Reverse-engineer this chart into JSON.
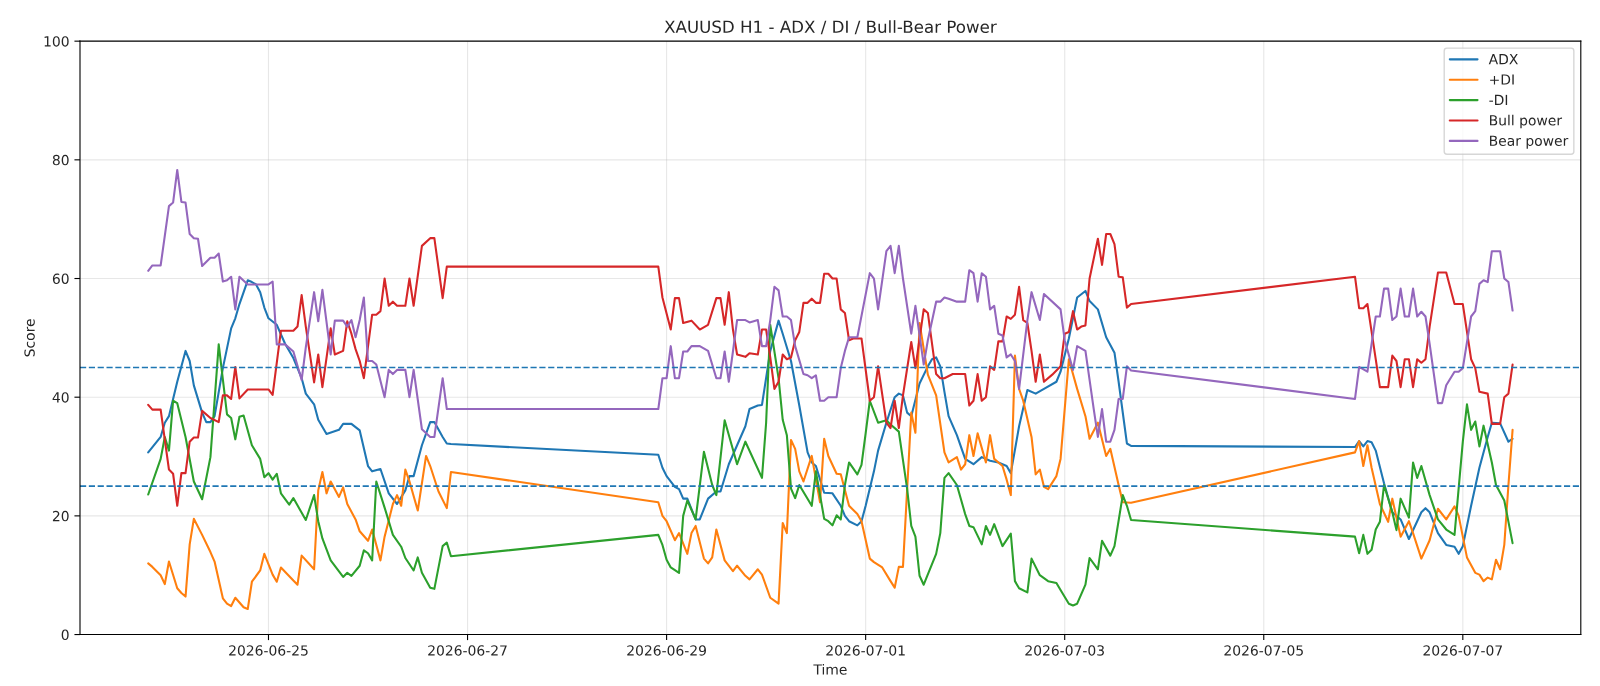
{
  "chart_data": {
    "type": "line",
    "title": "XAUUSD H1 - ADX / DI / Bull-Bear Power",
    "xlabel": "Time",
    "ylabel": "Score",
    "xlim": [
      "2026-06-23T02:33",
      "2026-07-08T04:27"
    ],
    "ylim": [
      0,
      100
    ],
    "yticks": [
      0,
      20,
      40,
      60,
      80,
      100
    ],
    "xticks": [
      {
        "value": "2026-06-25",
        "label": "2026-06-25"
      },
      {
        "value": "2026-06-27",
        "label": "2026-06-27"
      },
      {
        "value": "2026-06-29",
        "label": "2026-06-29"
      },
      {
        "value": "2026-07-01",
        "label": "2026-07-01"
      },
      {
        "value": "2026-07-03",
        "label": "2026-07-03"
      },
      {
        "value": "2026-07-05",
        "label": "2026-07-05"
      },
      {
        "value": "2026-07-07",
        "label": "2026-07-07"
      }
    ],
    "grid": true,
    "legend": "top right",
    "line_style": "solid",
    "ref_lines": [
      {
        "axis": "y",
        "value": 45,
        "color": "#1f77b4",
        "line_style": "dashed"
      },
      {
        "axis": "y",
        "value": 25,
        "color": "#1f77b4",
        "line_style": "dashed"
      }
    ],
    "series": [
      {
        "name": "ADX",
        "color": "#1f77b4",
        "x": [
          "2026-06-23T19:00",
          "2026-06-23T22:00",
          "2026-06-23T23:00",
          "2026-06-24T00:00",
          "2026-06-24T02:00",
          "2026-06-24T04:00",
          "2026-06-24T05:00",
          "2026-06-24T06:00",
          "2026-06-24T08:00",
          "2026-06-24T09:00",
          "2026-06-24T10:00",
          "2026-06-24T11:00",
          "2026-06-24T13:00",
          "2026-06-24T15:00",
          "2026-06-24T16:00",
          "2026-06-24T17:00",
          "2026-06-24T19:00",
          "2026-06-24T20:00",
          "2026-06-24T21:00",
          "2026-06-24T22:00",
          "2026-06-24T23:00",
          "2026-06-25T00:00",
          "2026-06-25T02:00",
          "2026-06-25T04:00",
          "2026-06-25T06:00",
          "2026-06-25T08:00",
          "2026-06-25T09:00",
          "2026-06-25T11:00",
          "2026-06-25T12:00",
          "2026-06-25T14:00",
          "2026-06-25T17:00",
          "2026-06-25T18:00",
          "2026-06-25T20:00",
          "2026-06-25T22:00",
          "2026-06-26T00:00",
          "2026-06-26T01:00",
          "2026-06-26T03:00",
          "2026-06-26T05:00",
          "2026-06-26T07:00",
          "2026-06-26T09:00",
          "2026-06-26T10:00",
          "2026-06-26T11:00",
          "2026-06-26T13:00",
          "2026-06-26T15:00",
          "2026-06-26T16:00",
          "2026-06-26T18:00",
          "2026-06-26T19:00",
          "2026-06-26T20:00",
          "2026-06-28T22:00",
          "2026-06-28T23:00",
          "2026-06-29T00:00",
          "2026-06-29T02:00",
          "2026-06-29T03:00",
          "2026-06-29T04:00",
          "2026-06-29T05:00",
          "2026-06-29T07:00",
          "2026-06-29T08:00",
          "2026-06-29T10:00",
          "2026-06-29T12:00",
          "2026-06-29T13:00",
          "2026-06-29T15:00",
          "2026-06-29T17:00",
          "2026-06-29T19:00",
          "2026-06-29T20:00",
          "2026-06-29T22:00",
          "2026-06-29T23:00",
          "2026-06-30T01:00",
          "2026-06-30T03:00",
          "2026-06-30T04:00",
          "2026-06-30T06:00",
          "2026-06-30T08:00",
          "2026-06-30T10:00",
          "2026-06-30T11:00",
          "2026-06-30T12:00",
          "2026-06-30T14:00",
          "2026-06-30T16:00",
          "2026-06-30T18:00",
          "2026-06-30T19:00",
          "2026-06-30T20:00",
          "2026-06-30T22:00",
          "2026-06-30T23:00",
          "2026-07-01T00:00",
          "2026-07-01T02:00",
          "2026-07-01T03:00",
          "2026-07-01T05:00",
          "2026-07-01T07:00",
          "2026-07-01T08:00",
          "2026-07-01T09:00",
          "2026-07-01T10:00",
          "2026-07-01T11:00",
          "2026-07-01T13:00",
          "2026-07-01T15:00",
          "2026-07-01T16:00",
          "2026-07-01T17:00",
          "2026-07-01T18:00",
          "2026-07-01T19:00",
          "2026-07-01T20:00",
          "2026-07-01T22:00",
          "2026-07-02T00:00",
          "2026-07-02T02:00",
          "2026-07-02T04:00",
          "2026-07-02T06:00",
          "2026-07-02T08:00",
          "2026-07-02T10:00",
          "2026-07-02T11:00",
          "2026-07-02T13:00",
          "2026-07-02T15:00",
          "2026-07-02T17:00",
          "2026-07-02T19:00",
          "2026-07-02T22:00",
          "2026-07-02T23:00",
          "2026-07-03T01:00",
          "2026-07-03T03:00",
          "2026-07-03T05:00",
          "2026-07-03T06:00",
          "2026-07-03T08:00",
          "2026-07-03T10:00",
          "2026-07-03T12:00",
          "2026-07-03T13:00",
          "2026-07-03T15:00",
          "2026-07-03T16:00",
          "2026-07-05T22:00",
          "2026-07-05T23:00",
          "2026-07-06T00:00",
          "2026-07-06T01:00",
          "2026-07-06T02:00",
          "2026-07-06T03:00",
          "2026-07-06T05:00",
          "2026-07-06T07:00",
          "2026-07-06T09:00",
          "2026-07-06T11:00",
          "2026-07-06T13:00",
          "2026-07-06T14:00",
          "2026-07-06T15:00",
          "2026-07-06T16:00",
          "2026-07-06T18:00",
          "2026-07-06T20:00",
          "2026-07-06T22:00",
          "2026-07-06T23:00",
          "2026-07-07T00:00",
          "2026-07-07T02:00",
          "2026-07-07T04:00",
          "2026-07-07T06:00",
          "2026-07-07T07:00",
          "2026-07-07T09:00",
          "2026-07-07T11:00",
          "2026-07-07T12:00"
        ],
        "values": [
          30.7,
          33.3,
          35.7,
          36.8,
          42.6,
          47.8,
          46.1,
          42.0,
          37.4,
          35.8,
          35.8,
          36.8,
          44.9,
          51.6,
          53.3,
          55.7,
          59.7,
          59.4,
          59.0,
          57.7,
          55.1,
          53.3,
          52.2,
          49.0,
          46.6,
          43.2,
          40.6,
          38.8,
          36.2,
          33.8,
          34.5,
          35.5,
          35.5,
          34.4,
          28.4,
          27.5,
          27.9,
          23.8,
          22.0,
          24.3,
          26.7,
          26.7,
          31.9,
          35.8,
          35.8,
          33.3,
          32.2,
          32.1,
          30.3,
          28.1,
          26.7,
          24.9,
          24.5,
          22.9,
          22.9,
          19.4,
          19.4,
          22.9,
          24.1,
          24.1,
          28.7,
          31.9,
          35.1,
          38.0,
          38.6,
          38.7,
          47.8,
          52.9,
          50.7,
          46.1,
          38.6,
          30.7,
          29.0,
          28.4,
          23.9,
          23.8,
          21.7,
          20.0,
          19.1,
          18.4,
          19.1,
          21.7,
          27.5,
          31.0,
          35.7,
          40.0,
          40.6,
          40.3,
          37.4,
          36.8,
          42.3,
          45.2,
          46.4,
          46.7,
          45.2,
          40.9,
          36.8,
          33.6,
          29.6,
          28.7,
          29.9,
          29.3,
          29.0,
          28.4,
          27.2,
          35.1,
          41.2,
          40.6,
          41.4,
          42.6,
          44.3,
          49.9,
          56.8,
          57.9,
          56.2,
          54.8,
          50.1,
          47.5,
          42.6,
          32.2,
          31.8,
          31.6,
          32.6,
          31.7,
          32.6,
          32.4,
          31.0,
          25.5,
          20.6,
          19.4,
          16.1,
          19.1,
          20.6,
          21.3,
          20.6,
          17.1,
          15.1,
          14.8,
          13.6,
          14.9,
          21.7,
          28.1,
          33.3,
          35.7,
          35.6,
          32.5,
          33.0
        ]
      },
      {
        "name": "+DI",
        "color": "#ff7f0e",
        "x": [
          "2026-06-23T19:00",
          "2026-06-23T20:00",
          "2026-06-23T22:00",
          "2026-06-23T23:00",
          "2026-06-24T00:00",
          "2026-06-24T02:00",
          "2026-06-24T03:00",
          "2026-06-24T04:00",
          "2026-06-24T05:00",
          "2026-06-24T06:00",
          "2026-06-24T08:00",
          "2026-06-24T10:00",
          "2026-06-24T11:00",
          "2026-06-24T13:00",
          "2026-06-24T14:00",
          "2026-06-24T15:00",
          "2026-06-24T16:00",
          "2026-06-24T18:00",
          "2026-06-24T19:00",
          "2026-06-24T20:00",
          "2026-06-24T22:00",
          "2026-06-24T23:00",
          "2026-06-25T01:00",
          "2026-06-25T02:00",
          "2026-06-25T03:00",
          "2026-06-25T06:00",
          "2026-06-25T07:00",
          "2026-06-25T08:00",
          "2026-06-25T11:00",
          "2026-06-25T12:00",
          "2026-06-25T13:00",
          "2026-06-25T14:00",
          "2026-06-25T15:00",
          "2026-06-25T17:00",
          "2026-06-25T18:00",
          "2026-06-25T19:00",
          "2026-06-25T21:00",
          "2026-06-25T22:00",
          "2026-06-26T00:00",
          "2026-06-26T01:00",
          "2026-06-26T03:00",
          "2026-06-26T04:00",
          "2026-06-26T06:00",
          "2026-06-26T07:00",
          "2026-06-26T08:00",
          "2026-06-26T09:00",
          "2026-06-26T10:00",
          "2026-06-26T12:00",
          "2026-06-26T14:00",
          "2026-06-26T15:00",
          "2026-06-26T17:00",
          "2026-06-26T19:00",
          "2026-06-26T20:00",
          "2026-06-28T22:00",
          "2026-06-28T23:00",
          "2026-06-29T00:00",
          "2026-06-29T02:00",
          "2026-06-29T03:00",
          "2026-06-29T05:00",
          "2026-06-29T06:00",
          "2026-06-29T07:00",
          "2026-06-29T09:00",
          "2026-06-29T10:00",
          "2026-06-29T11:00",
          "2026-06-29T12:00",
          "2026-06-29T14:00",
          "2026-06-29T16:00",
          "2026-06-29T17:00",
          "2026-06-29T19:00",
          "2026-06-29T20:00",
          "2026-06-29T22:00",
          "2026-06-29T23:00",
          "2026-06-30T01:00",
          "2026-06-30T03:00",
          "2026-06-30T04:00",
          "2026-06-30T05:00",
          "2026-06-30T06:00",
          "2026-06-30T07:00",
          "2026-06-30T08:00",
          "2026-06-30T09:00",
          "2026-06-30T11:00",
          "2026-06-30T13:00",
          "2026-06-30T14:00",
          "2026-06-30T15:00",
          "2026-06-30T17:00",
          "2026-06-30T18:00",
          "2026-06-30T20:00",
          "2026-06-30T22:00",
          "2026-06-30T23:00",
          "2026-07-01T01:00",
          "2026-07-01T02:00",
          "2026-07-01T04:00",
          "2026-07-01T06:00",
          "2026-07-01T07:00",
          "2026-07-01T08:00",
          "2026-07-01T09:00",
          "2026-07-01T11:00",
          "2026-07-01T12:00",
          "2026-07-01T13:00",
          "2026-07-01T15:00",
          "2026-07-01T17:00",
          "2026-07-01T19:00",
          "2026-07-01T20:00",
          "2026-07-01T22:00",
          "2026-07-01T23:00",
          "2026-07-02T00:00",
          "2026-07-02T01:00",
          "2026-07-02T02:00",
          "2026-07-02T03:00",
          "2026-07-02T05:00",
          "2026-07-02T06:00",
          "2026-07-02T07:00",
          "2026-07-02T09:00",
          "2026-07-02T10:00",
          "2026-07-02T11:00",
          "2026-07-02T12:00",
          "2026-07-02T13:00",
          "2026-07-02T14:00",
          "2026-07-02T16:00",
          "2026-07-02T17:00",
          "2026-07-02T18:00",
          "2026-07-02T19:00",
          "2026-07-02T20:00",
          "2026-07-02T22:00",
          "2026-07-02T23:00",
          "2026-07-03T01:00",
          "2026-07-03T03:00",
          "2026-07-03T05:00",
          "2026-07-03T06:00",
          "2026-07-03T08:00",
          "2026-07-03T10:00",
          "2026-07-03T11:00",
          "2026-07-03T13:00",
          "2026-07-03T14:00",
          "2026-07-03T16:00",
          "2026-07-05T22:00",
          "2026-07-05T23:00",
          "2026-07-06T00:00",
          "2026-07-06T01:00",
          "2026-07-06T02:00",
          "2026-07-06T04:00",
          "2026-07-06T06:00",
          "2026-07-06T07:00",
          "2026-07-06T09:00",
          "2026-07-06T11:00",
          "2026-07-06T12:00",
          "2026-07-06T14:00",
          "2026-07-06T16:00",
          "2026-07-06T18:00",
          "2026-07-06T20:00",
          "2026-07-06T22:00",
          "2026-07-06T23:00",
          "2026-07-07T01:00",
          "2026-07-07T03:00",
          "2026-07-07T04:00",
          "2026-07-07T05:00",
          "2026-07-07T06:00",
          "2026-07-07T07:00",
          "2026-07-07T08:00",
          "2026-07-07T09:00",
          "2026-07-07T10:00",
          "2026-07-07T11:00",
          "2026-07-07T12:00"
        ],
        "values": [
          12.0,
          11.4,
          10.0,
          8.5,
          12.3,
          7.8,
          7.0,
          6.4,
          15.2,
          19.5,
          16.8,
          13.9,
          12.3,
          6.1,
          5.2,
          4.8,
          6.2,
          4.6,
          4.3,
          8.9,
          10.8,
          13.6,
          10.1,
          8.9,
          11.3,
          9.1,
          8.4,
          13.3,
          11.0,
          24.3,
          27.4,
          23.8,
          25.8,
          23.2,
          24.8,
          22.0,
          19.4,
          17.4,
          15.8,
          17.7,
          12.5,
          16.5,
          22.0,
          23.5,
          21.7,
          27.8,
          25.8,
          20.9,
          30.1,
          28.4,
          24.1,
          21.3,
          27.4,
          22.3,
          20.0,
          19.1,
          15.9,
          17.1,
          13.6,
          17.1,
          18.3,
          12.8,
          12.0,
          13.0,
          17.7,
          12.5,
          10.7,
          11.6,
          9.9,
          9.3,
          11.0,
          10.1,
          6.2,
          5.2,
          18.8,
          17.1,
          32.8,
          31.3,
          27.5,
          25.8,
          30.1,
          22.3,
          33.0,
          30.1,
          27.1,
          27.0,
          21.7,
          20.3,
          19.1,
          12.8,
          12.2,
          11.3,
          9.0,
          7.9,
          11.4,
          11.4,
          37.4,
          34.0,
          52.5,
          43.8,
          40.3,
          30.7,
          29.0,
          29.9,
          27.8,
          28.7,
          33.6,
          30.1,
          33.9,
          29.0,
          33.6,
          29.6,
          28.4,
          26.1,
          23.5,
          47.0,
          41.4,
          39.4,
          33.3,
          27.0,
          27.8,
          24.9,
          24.5,
          26.7,
          29.6,
          46.4,
          41.4,
          36.8,
          33.0,
          35.7,
          30.1,
          31.3,
          25.2,
          22.3,
          22.2,
          30.7,
          32.6,
          28.4,
          31.9,
          28.1,
          22.0,
          19.0,
          22.9,
          16.5,
          19.1,
          17.1,
          12.8,
          15.9,
          21.2,
          19.4,
          21.6,
          20.0,
          13.0,
          10.4,
          10.1,
          9.0,
          9.6,
          9.3,
          12.6,
          11.0,
          15.1,
          25.2,
          34.5
        ]
      },
      {
        "name": "-DI",
        "color": "#2ca02c",
        "x": [
          "2026-06-23T19:00",
          "2026-06-23T22:00",
          "2026-06-23T23:00",
          "2026-06-24T00:00",
          "2026-06-24T01:00",
          "2026-06-24T02:00",
          "2026-06-24T04:00",
          "2026-06-24T06:00",
          "2026-06-24T08:00",
          "2026-06-24T10:00",
          "2026-06-24T12:00",
          "2026-06-24T14:00",
          "2026-06-24T15:00",
          "2026-06-24T16:00",
          "2026-06-24T17:00",
          "2026-06-24T18:00",
          "2026-06-24T20:00",
          "2026-06-24T22:00",
          "2026-06-24T23:00",
          "2026-06-25T00:00",
          "2026-06-25T01:00",
          "2026-06-25T02:00",
          "2026-06-25T03:00",
          "2026-06-25T05:00",
          "2026-06-25T06:00",
          "2026-06-25T09:00",
          "2026-06-25T11:00",
          "2026-06-25T12:00",
          "2026-06-25T13:00",
          "2026-06-25T15:00",
          "2026-06-25T18:00",
          "2026-06-25T19:00",
          "2026-06-25T20:00",
          "2026-06-25T22:00",
          "2026-06-25T23:00",
          "2026-06-26T00:00",
          "2026-06-26T01:00",
          "2026-06-26T02:00",
          "2026-06-26T04:00",
          "2026-06-26T06:00",
          "2026-06-26T08:00",
          "2026-06-26T09:00",
          "2026-06-26T11:00",
          "2026-06-26T12:00",
          "2026-06-26T13:00",
          "2026-06-26T15:00",
          "2026-06-26T16:00",
          "2026-06-26T18:00",
          "2026-06-26T19:00",
          "2026-06-26T20:00",
          "2026-06-28T22:00",
          "2026-06-28T23:00",
          "2026-06-29T00:00",
          "2026-06-29T01:00",
          "2026-06-29T03:00",
          "2026-06-29T04:00",
          "2026-06-29T05:00",
          "2026-06-29T07:00",
          "2026-06-29T09:00",
          "2026-06-29T11:00",
          "2026-06-29T12:00",
          "2026-06-29T14:00",
          "2026-06-29T17:00",
          "2026-06-29T19:00",
          "2026-06-29T23:00",
          "2026-06-30T00:00",
          "2026-06-30T01:00",
          "2026-06-30T03:00",
          "2026-06-30T04:00",
          "2026-06-30T05:00",
          "2026-06-30T06:00",
          "2026-06-30T07:00",
          "2026-06-30T08:00",
          "2026-06-30T11:00",
          "2026-06-30T12:00",
          "2026-06-30T14:00",
          "2026-06-30T15:00",
          "2026-06-30T16:00",
          "2026-06-30T17:00",
          "2026-06-30T18:00",
          "2026-06-30T19:00",
          "2026-06-30T20:00",
          "2026-06-30T22:00",
          "2026-06-30T23:00",
          "2026-07-01T00:00",
          "2026-07-01T01:00",
          "2026-07-01T03:00",
          "2026-07-01T05:00",
          "2026-07-01T06:00",
          "2026-07-01T08:00",
          "2026-07-01T10:00",
          "2026-07-01T11:00",
          "2026-07-01T12:00",
          "2026-07-01T13:00",
          "2026-07-01T14:00",
          "2026-07-01T17:00",
          "2026-07-01T18:00",
          "2026-07-01T19:00",
          "2026-07-01T20:00",
          "2026-07-01T22:00",
          "2026-07-02T00:00",
          "2026-07-02T01:00",
          "2026-07-02T02:00",
          "2026-07-02T04:00",
          "2026-07-02T05:00",
          "2026-07-02T06:00",
          "2026-07-02T07:00",
          "2026-07-02T09:00",
          "2026-07-02T11:00",
          "2026-07-02T12:00",
          "2026-07-02T13:00",
          "2026-07-02T15:00",
          "2026-07-02T16:00",
          "2026-07-02T18:00",
          "2026-07-02T20:00",
          "2026-07-02T22:00",
          "2026-07-02T23:00",
          "2026-07-03T01:00",
          "2026-07-03T02:00",
          "2026-07-03T03:00",
          "2026-07-03T05:00",
          "2026-07-03T06:00",
          "2026-07-03T08:00",
          "2026-07-03T09:00",
          "2026-07-03T11:00",
          "2026-07-03T12:00",
          "2026-07-03T14:00",
          "2026-07-03T15:00",
          "2026-07-03T16:00",
          "2026-07-05T22:00",
          "2026-07-05T23:00",
          "2026-07-06T00:00",
          "2026-07-06T01:00",
          "2026-07-06T02:00",
          "2026-07-06T03:00",
          "2026-07-06T04:00",
          "2026-07-06T05:00",
          "2026-07-06T07:00",
          "2026-07-06T08:00",
          "2026-07-06T09:00",
          "2026-07-06T11:00",
          "2026-07-06T12:00",
          "2026-07-06T13:00",
          "2026-07-06T14:00",
          "2026-07-06T16:00",
          "2026-07-06T18:00",
          "2026-07-06T20:00",
          "2026-07-06T22:00",
          "2026-07-07T00:00",
          "2026-07-07T01:00",
          "2026-07-07T02:00",
          "2026-07-07T03:00",
          "2026-07-07T04:00",
          "2026-07-07T05:00",
          "2026-07-07T07:00",
          "2026-07-07T08:00",
          "2026-07-07T10:00",
          "2026-07-07T12:00"
        ],
        "values": [
          23.6,
          29.6,
          33.3,
          31.0,
          39.4,
          39.0,
          33.3,
          25.8,
          22.8,
          29.9,
          48.9,
          37.1,
          36.5,
          32.9,
          36.7,
          36.9,
          31.9,
          29.6,
          26.5,
          27.2,
          26.1,
          27.1,
          23.8,
          21.9,
          23.0,
          19.3,
          23.5,
          19.1,
          16.2,
          12.5,
          9.7,
          10.4,
          9.9,
          11.6,
          14.2,
          13.7,
          12.5,
          25.8,
          21.4,
          16.8,
          14.8,
          12.9,
          10.8,
          13.0,
          10.4,
          7.9,
          7.7,
          14.9,
          15.5,
          13.2,
          16.8,
          15.1,
          12.6,
          11.3,
          10.4,
          20.0,
          22.6,
          19.4,
          30.8,
          25.2,
          23.5,
          36.1,
          28.7,
          32.5,
          26.4,
          35.7,
          52.2,
          43.2,
          36.2,
          33.6,
          24.6,
          23.0,
          25.2,
          21.7,
          27.5,
          19.5,
          19.1,
          18.4,
          20.1,
          19.4,
          25.2,
          29.0,
          27.0,
          28.6,
          33.9,
          39.4,
          35.7,
          36.1,
          35.4,
          34.2,
          24.6,
          18.3,
          16.5,
          9.9,
          8.4,
          13.6,
          17.1,
          26.4,
          27.2,
          25.2,
          20.3,
          18.3,
          18.1,
          15.2,
          18.3,
          16.8,
          18.6,
          14.9,
          17.0,
          9.0,
          7.8,
          7.1,
          12.8,
          10.0,
          9.0,
          8.7,
          7.5,
          5.2,
          4.9,
          5.2,
          8.4,
          12.9,
          11.0,
          15.8,
          13.3,
          14.9,
          23.5,
          21.7,
          19.3,
          16.5,
          13.7,
          16.8,
          13.6,
          14.3,
          17.7,
          19.0,
          25.2,
          20.6,
          17.6,
          22.9,
          19.7,
          29.0,
          26.4,
          28.4,
          23.5,
          19.4,
          17.7,
          16.8,
          32.5,
          38.8,
          34.5,
          35.9,
          31.7,
          35.2,
          29.0,
          25.2,
          22.6,
          15.4
        ]
      },
      {
        "name": "Bull power",
        "color": "#d62728",
        "x": [
          "2026-06-23T19:00",
          "2026-06-23T20:00",
          "2026-06-23T22:00",
          "2026-06-24T00:00",
          "2026-06-24T01:00",
          "2026-06-24T02:00",
          "2026-06-24T03:00",
          "2026-06-24T04:00",
          "2026-06-24T05:00",
          "2026-06-24T06:00",
          "2026-06-24T07:00",
          "2026-06-24T08:00",
          "2026-06-24T10:00",
          "2026-06-24T12:00",
          "2026-06-24T13:00",
          "2026-06-24T14:00",
          "2026-06-24T15:00",
          "2026-06-24T16:00",
          "2026-06-24T17:00",
          "2026-06-24T19:00",
          "2026-06-25T00:00",
          "2026-06-25T01:00",
          "2026-06-25T03:00",
          "2026-06-25T06:00",
          "2026-06-25T07:00",
          "2026-06-25T08:00",
          "2026-06-25T09:00",
          "2026-06-25T11:00",
          "2026-06-25T12:00",
          "2026-06-25T13:00",
          "2026-06-25T15:00",
          "2026-06-25T16:00",
          "2026-06-25T18:00",
          "2026-06-25T19:00",
          "2026-06-25T20:00",
          "2026-06-25T21:00",
          "2026-06-25T22:00",
          "2026-06-25T23:00",
          "2026-06-26T01:00",
          "2026-06-26T02:00",
          "2026-06-26T03:00",
          "2026-06-26T04:00",
          "2026-06-26T05:00",
          "2026-06-26T06:00",
          "2026-06-26T07:00",
          "2026-06-26T09:00",
          "2026-06-26T10:00",
          "2026-06-26T11:00",
          "2026-06-26T13:00",
          "2026-06-26T15:00",
          "2026-06-26T16:00",
          "2026-06-26T18:00",
          "2026-06-26T19:00",
          "2026-06-26T20:00",
          "2026-06-28T22:00",
          "2026-06-28T23:00",
          "2026-06-29T01:00",
          "2026-06-29T02:00",
          "2026-06-29T03:00",
          "2026-06-29T04:00",
          "2026-06-29T06:00",
          "2026-06-29T08:00",
          "2026-06-29T10:00",
          "2026-06-29T12:00",
          "2026-06-29T13:00",
          "2026-06-29T14:00",
          "2026-06-29T15:00",
          "2026-06-29T16:00",
          "2026-06-29T17:00",
          "2026-06-29T19:00",
          "2026-06-29T20:00",
          "2026-06-29T22:00",
          "2026-06-29T23:00",
          "2026-06-30T00:00",
          "2026-06-30T01:00",
          "2026-06-30T02:00",
          "2026-06-30T03:00",
          "2026-06-30T04:00",
          "2026-06-30T05:00",
          "2026-06-30T06:00",
          "2026-06-30T07:00",
          "2026-06-30T08:00",
          "2026-06-30T09:00",
          "2026-06-30T10:00",
          "2026-06-30T11:00",
          "2026-06-30T12:00",
          "2026-06-30T13:00",
          "2026-06-30T14:00",
          "2026-06-30T15:00",
          "2026-06-30T16:00",
          "2026-06-30T17:00",
          "2026-06-30T18:00",
          "2026-06-30T19:00",
          "2026-06-30T20:00",
          "2026-06-30T21:00",
          "2026-06-30T23:00",
          "2026-07-01T01:00",
          "2026-07-01T02:00",
          "2026-07-01T03:00",
          "2026-07-01T05:00",
          "2026-07-01T06:00",
          "2026-07-01T07:00",
          "2026-07-01T08:00",
          "2026-07-01T09:00",
          "2026-07-01T11:00",
          "2026-07-01T12:00",
          "2026-07-01T14:00",
          "2026-07-01T15:00",
          "2026-07-01T17:00",
          "2026-07-01T18:00",
          "2026-07-01T19:00",
          "2026-07-01T21:00",
          "2026-07-01T23:00",
          "2026-07-02T00:00",
          "2026-07-02T01:00",
          "2026-07-02T02:00",
          "2026-07-02T03:00",
          "2026-07-02T04:00",
          "2026-07-02T05:00",
          "2026-07-02T06:00",
          "2026-07-02T07:00",
          "2026-07-02T08:00",
          "2026-07-02T09:00",
          "2026-07-02T10:00",
          "2026-07-02T11:00",
          "2026-07-02T12:00",
          "2026-07-02T13:00",
          "2026-07-02T14:00",
          "2026-07-02T15:00",
          "2026-07-02T16:00",
          "2026-07-02T17:00",
          "2026-07-02T18:00",
          "2026-07-02T19:00",
          "2026-07-02T21:00",
          "2026-07-02T23:00",
          "2026-07-03T00:00",
          "2026-07-03T01:00",
          "2026-07-03T02:00",
          "2026-07-03T03:00",
          "2026-07-03T04:00",
          "2026-07-03T05:00",
          "2026-07-03T06:00",
          "2026-07-03T08:00",
          "2026-07-03T09:00",
          "2026-07-03T10:00",
          "2026-07-03T11:00",
          "2026-07-03T12:00",
          "2026-07-03T13:00",
          "2026-07-03T14:00",
          "2026-07-03T15:00",
          "2026-07-03T16:00",
          "2026-07-05T22:00",
          "2026-07-05T23:00",
          "2026-07-06T00:00",
          "2026-07-06T01:00",
          "2026-07-06T03:00",
          "2026-07-06T04:00",
          "2026-07-06T06:00",
          "2026-07-06T07:00",
          "2026-07-06T08:00",
          "2026-07-06T09:00",
          "2026-07-06T10:00",
          "2026-07-06T11:00",
          "2026-07-06T12:00",
          "2026-07-06T13:00",
          "2026-07-06T14:00",
          "2026-07-06T15:00",
          "2026-07-06T16:00",
          "2026-07-06T18:00",
          "2026-07-06T20:00",
          "2026-07-06T22:00",
          "2026-07-07T00:00",
          "2026-07-07T02:00",
          "2026-07-07T03:00",
          "2026-07-07T04:00",
          "2026-07-07T06:00",
          "2026-07-07T07:00",
          "2026-07-07T09:00",
          "2026-07-07T10:00",
          "2026-07-07T11:00",
          "2026-07-07T12:00"
        ],
        "values": [
          38.7,
          37.9,
          37.9,
          27.8,
          27.1,
          21.7,
          27.2,
          27.2,
          32.5,
          33.2,
          33.2,
          37.7,
          36.5,
          35.8,
          40.3,
          40.3,
          39.7,
          45.1,
          39.8,
          41.3,
          41.3,
          40.4,
          51.2,
          51.2,
          51.9,
          57.2,
          51.9,
          42.5,
          47.2,
          41.7,
          51.6,
          47.2,
          47.8,
          52.8,
          50.7,
          48.1,
          46.1,
          43.2,
          53.9,
          53.9,
          54.5,
          60.0,
          55.4,
          56.1,
          55.4,
          55.4,
          60.0,
          55.4,
          65.5,
          66.8,
          66.8,
          56.7,
          62.0,
          62.0,
          62.0,
          56.8,
          51.4,
          56.7,
          56.7,
          52.5,
          52.9,
          51.4,
          52.2,
          56.7,
          56.7,
          52.2,
          57.7,
          51.4,
          47.2,
          46.8,
          47.4,
          47.2,
          51.4,
          51.4,
          46.7,
          41.4,
          42.6,
          47.2,
          46.4,
          46.7,
          49.6,
          51.0,
          55.9,
          55.9,
          56.6,
          55.9,
          55.9,
          60.8,
          60.8,
          60.0,
          60.0,
          54.8,
          54.2,
          49.6,
          49.9,
          49.9,
          39.4,
          40.0,
          45.2,
          35.7,
          34.8,
          39.4,
          34.8,
          40.3,
          49.3,
          44.9,
          54.8,
          54.2,
          43.9,
          43.2,
          43.2,
          43.9,
          43.9,
          43.9,
          38.6,
          39.4,
          43.9,
          39.4,
          40.0,
          45.2,
          44.6,
          49.4,
          49.4,
          53.6,
          53.2,
          53.9,
          58.6,
          53.0,
          52.5,
          47.8,
          42.6,
          47.2,
          42.6,
          43.8,
          45.2,
          50.7,
          51.0,
          54.5,
          51.4,
          51.9,
          52.1,
          60.0,
          66.7,
          62.3,
          67.5,
          67.5,
          65.8,
          60.3,
          60.2,
          55.1,
          55.7,
          60.3,
          55.0,
          55.0,
          55.7,
          46.4,
          41.7,
          41.7,
          47.0,
          46.1,
          41.7,
          46.4,
          46.4,
          41.7,
          46.4,
          45.8,
          46.4,
          51.9,
          61.0,
          61.0,
          55.7,
          55.7,
          46.4,
          44.9,
          40.9,
          40.6,
          35.5,
          35.5,
          40.0,
          40.6,
          45.5
        ]
      },
      {
        "name": "Bear power",
        "color": "#9467bd",
        "x": [
          "2026-06-23T19:00",
          "2026-06-23T20:00",
          "2026-06-23T22:00",
          "2026-06-24T00:00",
          "2026-06-24T01:00",
          "2026-06-24T02:00",
          "2026-06-24T03:00",
          "2026-06-24T04:00",
          "2026-06-24T05:00",
          "2026-06-24T06:00",
          "2026-06-24T07:00",
          "2026-06-24T08:00",
          "2026-06-24T10:00",
          "2026-06-24T11:00",
          "2026-06-24T12:00",
          "2026-06-24T13:00",
          "2026-06-24T14:00",
          "2026-06-24T15:00",
          "2026-06-24T16:00",
          "2026-06-24T17:00",
          "2026-06-24T19:00",
          "2026-06-25T00:00",
          "2026-06-25T01:00",
          "2026-06-25T02:00",
          "2026-06-25T04:00",
          "2026-06-25T06:00",
          "2026-06-25T08:00",
          "2026-06-25T09:00",
          "2026-06-25T11:00",
          "2026-06-25T12:00",
          "2026-06-25T13:00",
          "2026-06-25T15:00",
          "2026-06-25T16:00",
          "2026-06-25T18:00",
          "2026-06-25T19:00",
          "2026-06-25T20:00",
          "2026-06-25T21:00",
          "2026-06-25T22:00",
          "2026-06-25T23:00",
          "2026-06-26T00:00",
          "2026-06-26T01:00",
          "2026-06-26T02:00",
          "2026-06-26T04:00",
          "2026-06-26T05:00",
          "2026-06-26T06:00",
          "2026-06-26T07:00",
          "2026-06-26T09:00",
          "2026-06-26T10:00",
          "2026-06-26T11:00",
          "2026-06-26T13:00",
          "2026-06-26T15:00",
          "2026-06-26T16:00",
          "2026-06-26T18:00",
          "2026-06-26T19:00",
          "2026-06-26T20:00",
          "2026-06-28T22:00",
          "2026-06-28T23:00",
          "2026-06-29T00:00",
          "2026-06-29T01:00",
          "2026-06-29T02:00",
          "2026-06-29T03:00",
          "2026-06-29T04:00",
          "2026-06-29T05:00",
          "2026-06-29T06:00",
          "2026-06-29T08:00",
          "2026-06-29T10:00",
          "2026-06-29T12:00",
          "2026-06-29T13:00",
          "2026-06-29T14:00",
          "2026-06-29T15:00",
          "2026-06-29T16:00",
          "2026-06-29T17:00",
          "2026-06-29T19:00",
          "2026-06-29T20:00",
          "2026-06-29T22:00",
          "2026-06-29T23:00",
          "2026-06-30T00:00",
          "2026-06-30T01:00",
          "2026-06-30T02:00",
          "2026-06-30T03:00",
          "2026-06-30T04:00",
          "2026-06-30T05:00",
          "2026-06-30T06:00",
          "2026-06-30T07:00",
          "2026-06-30T09:00",
          "2026-06-30T10:00",
          "2026-06-30T11:00",
          "2026-06-30T12:00",
          "2026-06-30T13:00",
          "2026-06-30T14:00",
          "2026-06-30T15:00",
          "2026-06-30T17:00",
          "2026-06-30T18:00",
          "2026-06-30T19:00",
          "2026-06-30T20:00",
          "2026-06-30T22:00",
          "2026-07-01T01:00",
          "2026-07-01T02:00",
          "2026-07-01T03:00",
          "2026-07-01T05:00",
          "2026-07-01T06:00",
          "2026-07-01T07:00",
          "2026-07-01T08:00",
          "2026-07-01T09:00",
          "2026-07-01T11:00",
          "2026-07-01T12:00",
          "2026-07-01T14:00",
          "2026-07-01T15:00",
          "2026-07-01T17:00",
          "2026-07-01T18:00",
          "2026-07-01T19:00",
          "2026-07-01T20:00",
          "2026-07-01T22:00",
          "2026-07-02T00:00",
          "2026-07-02T01:00",
          "2026-07-02T02:00",
          "2026-07-02T03:00",
          "2026-07-02T04:00",
          "2026-07-02T05:00",
          "2026-07-02T06:00",
          "2026-07-02T07:00",
          "2026-07-02T08:00",
          "2026-07-02T09:00",
          "2026-07-02T10:00",
          "2026-07-02T11:00",
          "2026-07-02T12:00",
          "2026-07-02T13:00",
          "2026-07-02T15:00",
          "2026-07-02T16:00",
          "2026-07-02T18:00",
          "2026-07-02T19:00",
          "2026-07-02T23:00",
          "2026-07-03T00:00",
          "2026-07-03T02:00",
          "2026-07-03T03:00",
          "2026-07-03T05:00",
          "2026-07-03T07:00",
          "2026-07-03T08:00",
          "2026-07-03T09:00",
          "2026-07-03T10:00",
          "2026-07-03T11:00",
          "2026-07-03T12:00",
          "2026-07-03T13:00",
          "2026-07-03T14:00",
          "2026-07-03T15:00",
          "2026-07-03T16:00",
          "2026-07-05T22:00",
          "2026-07-05T23:00",
          "2026-07-06T01:00",
          "2026-07-06T03:00",
          "2026-07-06T04:00",
          "2026-07-06T05:00",
          "2026-07-06T06:00",
          "2026-07-06T07:00",
          "2026-07-06T08:00",
          "2026-07-06T09:00",
          "2026-07-06T10:00",
          "2026-07-06T11:00",
          "2026-07-06T12:00",
          "2026-07-06T13:00",
          "2026-07-06T14:00",
          "2026-07-06T15:00",
          "2026-07-06T16:00",
          "2026-07-06T18:00",
          "2026-07-06T19:00",
          "2026-07-06T20:00",
          "2026-07-06T22:00",
          "2026-07-06T23:00",
          "2026-07-07T00:00",
          "2026-07-07T02:00",
          "2026-07-07T03:00",
          "2026-07-07T04:00",
          "2026-07-07T05:00",
          "2026-07-07T06:00",
          "2026-07-07T07:00",
          "2026-07-07T09:00",
          "2026-07-07T10:00",
          "2026-07-07T11:00",
          "2026-07-07T12:00"
        ],
        "values": [
          61.3,
          62.2,
          62.2,
          72.2,
          72.8,
          78.3,
          72.9,
          72.8,
          67.5,
          66.8,
          66.7,
          62.1,
          63.5,
          63.5,
          64.2,
          59.5,
          59.7,
          60.3,
          54.8,
          60.3,
          59.0,
          59.0,
          59.5,
          48.9,
          48.9,
          47.7,
          42.9,
          48.4,
          57.7,
          52.8,
          58.1,
          47.2,
          52.9,
          52.9,
          51.9,
          53.0,
          50.1,
          53.0,
          56.8,
          46.1,
          46.1,
          45.5,
          40.0,
          44.6,
          43.9,
          44.6,
          44.6,
          40.0,
          44.6,
          34.6,
          33.3,
          33.3,
          43.2,
          38.0,
          38.0,
          38.0,
          43.2,
          43.2,
          48.6,
          43.2,
          43.2,
          47.7,
          47.7,
          48.6,
          48.6,
          47.8,
          43.2,
          43.2,
          47.7,
          42.6,
          47.7,
          53.0,
          53.0,
          52.6,
          53.0,
          48.6,
          48.6,
          53.0,
          58.6,
          58.0,
          53.6,
          53.6,
          53.0,
          48.6,
          43.9,
          43.7,
          43.2,
          43.7,
          39.4,
          39.4,
          40.0,
          40.0,
          44.9,
          47.8,
          50.1,
          50.1,
          60.9,
          60.0,
          54.8,
          64.6,
          65.5,
          60.9,
          65.5,
          60.0,
          50.7,
          55.4,
          45.5,
          49.6,
          56.1,
          56.1,
          56.8,
          56.6,
          56.1,
          56.1,
          61.4,
          60.9,
          56.1,
          60.9,
          60.3,
          54.8,
          55.4,
          50.7,
          50.4,
          46.7,
          47.2,
          46.1,
          41.4,
          53.0,
          57.7,
          53.0,
          57.4,
          54.8,
          49.6,
          44.6,
          48.6,
          47.8,
          38.0,
          33.3,
          38.0,
          32.5,
          32.5,
          34.5,
          39.7,
          39.7,
          45.2,
          44.5,
          39.7,
          45.1,
          44.3,
          53.6,
          53.6,
          58.3,
          58.3,
          53.0,
          53.6,
          58.3,
          53.6,
          53.6,
          58.3,
          53.6,
          54.4,
          53.6,
          49.0,
          39.0,
          39.0,
          42.0,
          44.3,
          44.3,
          44.9,
          53.6,
          54.5,
          59.1,
          59.7,
          59.4,
          64.6,
          64.6,
          60.0,
          59.4,
          54.6
        ]
      }
    ]
  }
}
